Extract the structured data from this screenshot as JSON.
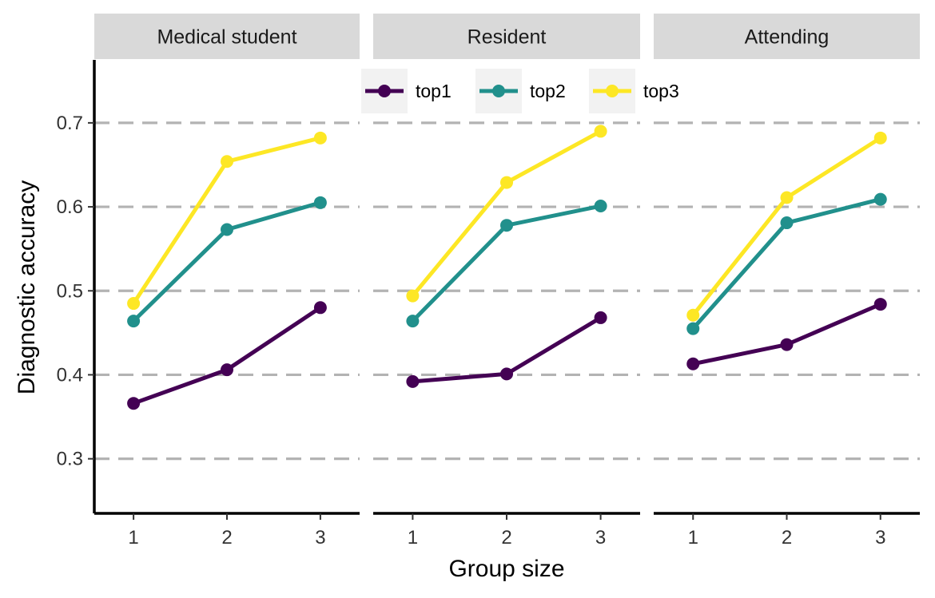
{
  "chart_data": {
    "type": "line",
    "xlabel": "Group size",
    "ylabel": "Diagnostic accuracy",
    "x": [
      1,
      2,
      3
    ],
    "x_tick_labels": [
      "1",
      "2",
      "3"
    ],
    "yticks": [
      0.3,
      0.4,
      0.5,
      0.6,
      0.7
    ],
    "y_tick_labels": [
      "0.3",
      "0.4",
      "0.5",
      "0.6",
      "0.7"
    ],
    "ylim": [
      0.235,
      0.775
    ],
    "xlim": [
      0.58,
      3.42
    ],
    "grid": "horizontal dashed",
    "legend_position": "top",
    "legend": [
      "top1",
      "top2",
      "top3"
    ],
    "colors": {
      "top1": "#440154",
      "top2": "#21908C",
      "top3": "#FDE725",
      "strip": "#D9D9D9",
      "grid": "#B3B3B3"
    },
    "panels": [
      {
        "label": "Medical student",
        "series": [
          {
            "name": "top1",
            "values": [
              0.366,
              0.406,
              0.48
            ]
          },
          {
            "name": "top2",
            "values": [
              0.464,
              0.573,
              0.605
            ]
          },
          {
            "name": "top3",
            "values": [
              0.485,
              0.654,
              0.682
            ]
          }
        ]
      },
      {
        "label": "Resident",
        "series": [
          {
            "name": "top1",
            "values": [
              0.392,
              0.401,
              0.468
            ]
          },
          {
            "name": "top2",
            "values": [
              0.464,
              0.578,
              0.601
            ]
          },
          {
            "name": "top3",
            "values": [
              0.494,
              0.629,
              0.69
            ]
          }
        ]
      },
      {
        "label": "Attending",
        "series": [
          {
            "name": "top1",
            "values": [
              0.413,
              0.436,
              0.484
            ]
          },
          {
            "name": "top2",
            "values": [
              0.455,
              0.581,
              0.609
            ]
          },
          {
            "name": "top3",
            "values": [
              0.471,
              0.611,
              0.682
            ]
          }
        ]
      }
    ]
  }
}
